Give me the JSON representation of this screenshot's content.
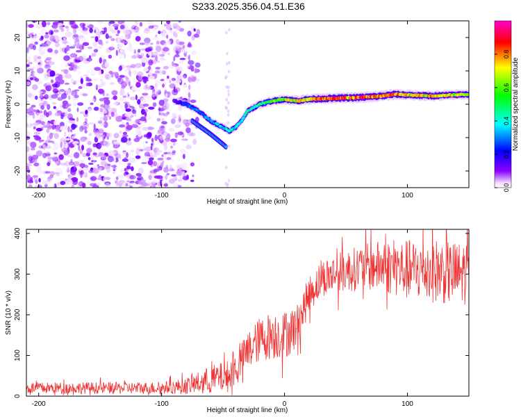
{
  "title": "S233.2025.356.04.51.E36",
  "colors": {
    "snr_line": "#ee3333",
    "spectrogram_noise": "#7b2be0",
    "axis": "#000000"
  },
  "chart_data": [
    {
      "type": "heatmap",
      "name": "spectrogram",
      "xlabel": "Height of straight line (km)",
      "ylabel": "Frequency (Hz)",
      "xlim": [
        -210,
        150
      ],
      "ylim": [
        -25,
        25
      ],
      "xticks": [
        -200,
        -100,
        0,
        100
      ],
      "yticks": [
        -20,
        -10,
        0,
        10,
        20
      ],
      "colorbar": {
        "label": "Normalized spectral amplitude",
        "range": [
          0,
          1
        ],
        "ticks": [
          0.0,
          0.2,
          0.4,
          0.6,
          0.8
        ],
        "tick_labels": [
          "0.0",
          "0.2",
          "0.4",
          "0.6",
          "0.8"
        ],
        "colormap": [
          "#ffffff",
          "#8800ff",
          "#0000ff",
          "#00ffff",
          "#00ff00",
          "#ffff00",
          "#ff0000",
          "#ff00ff"
        ]
      },
      "noise_region_km": [
        -210,
        -80
      ],
      "signal_track": {
        "description_points_km": [
          -90,
          -80,
          -70,
          -60,
          -50,
          -45,
          -40,
          -35,
          -30,
          -20,
          -10,
          0,
          10,
          20,
          40,
          60,
          80,
          90,
          100,
          120,
          150
        ],
        "frequency_hz": [
          1,
          0,
          -2,
          -5,
          -7,
          -8,
          -7,
          -5,
          -2,
          0,
          1,
          1.5,
          1,
          1.5,
          1.8,
          2,
          2.5,
          3,
          2.8,
          2.5,
          3
        ],
        "branch_km": [
          -75,
          -60,
          -50,
          -47
        ],
        "branch_hz": [
          -5,
          -9,
          -12,
          -13
        ],
        "amplitude": [
          0.1,
          0.3,
          0.3,
          0.35,
          0.4,
          0.45,
          0.4,
          0.4,
          0.45,
          0.5,
          0.6,
          0.7,
          0.75,
          0.8,
          0.85,
          0.9,
          0.85,
          0.85,
          0.75,
          0.8,
          0.7
        ]
      }
    },
    {
      "type": "line",
      "name": "snr",
      "xlabel": "Height of straight line (km)",
      "ylabel": "SNR (10 * v/v)",
      "xlim": [
        -210,
        150
      ],
      "ylim": [
        0,
        410
      ],
      "xticks": [
        -200,
        -100,
        0,
        100
      ],
      "yticks": [
        0,
        100,
        200,
        300,
        400
      ],
      "series": [
        {
          "name": "SNR",
          "x_anchors": [
            -210,
            -100,
            -80,
            -60,
            -45,
            -38,
            -30,
            -20,
            -10,
            0,
            10,
            20,
            30,
            40,
            60,
            80,
            100,
            120,
            140,
            150
          ],
          "y_mean": [
            20,
            20,
            25,
            40,
            50,
            75,
            110,
            140,
            150,
            150,
            170,
            250,
            290,
            300,
            315,
            320,
            310,
            310,
            300,
            305
          ],
          "y_spread": [
            14,
            15,
            20,
            35,
            40,
            40,
            50,
            55,
            60,
            60,
            55,
            45,
            45,
            50,
            55,
            65,
            75,
            80,
            80,
            80
          ]
        }
      ]
    }
  ]
}
